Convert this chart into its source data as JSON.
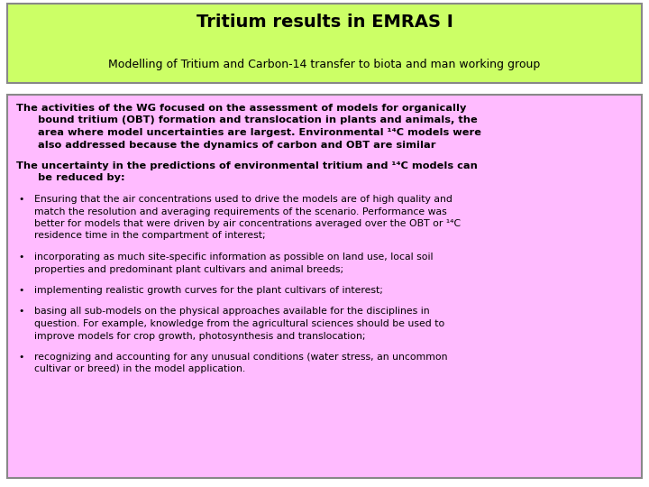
{
  "title": "Tritium results in EMRAS I",
  "subtitle": "Modelling of Tritium and Carbon-14 transfer to biota and man working group",
  "header_bg": "#ccff66",
  "body_bg": "#ffbbff",
  "header_border": "#888888",
  "body_border": "#888888",
  "bg_color": "#ffffff",
  "para1_line1": "The activities of the WG focused on the assessment of models for organically",
  "para1_line2": "bound tritium (OBT) formation and translocation in plants and animals, the",
  "para1_line3": "area where model uncertainties are largest. Environmental ¹⁴C models were",
  "para1_line4": "also addressed because the dynamics of carbon and OBT are similar",
  "para2_line1": "The uncertainty in the predictions of environmental tritium and ¹⁴C models can",
  "para2_line2": "be reduced by:",
  "bullet1_line1": "Ensuring that the air concentrations used to drive the models are of high quality and",
  "bullet1_line2": "match the resolution and averaging requirements of the scenario. Performance was",
  "bullet1_line3": "better for models that were driven by air concentrations averaged over the OBT or ¹⁴C",
  "bullet1_line4": "residence time in the compartment of interest;",
  "bullet2_line1": "incorporating as much site-specific information as possible on land use, local soil",
  "bullet2_line2": "properties and predominant plant cultivars and animal breeds;",
  "bullet3_line1": "implementing realistic growth curves for the plant cultivars of interest;",
  "bullet4_line1": "basing all sub-models on the physical approaches available for the disciplines in",
  "bullet4_line2": "question. For example, knowledge from the agricultural sciences should be used to",
  "bullet4_line3": "improve models for crop growth, photosynthesis and translocation;",
  "bullet5_line1": "recognizing and accounting for any unusual conditions (water stress, an uncommon",
  "bullet5_line2": "cultivar or breed) in the model application."
}
